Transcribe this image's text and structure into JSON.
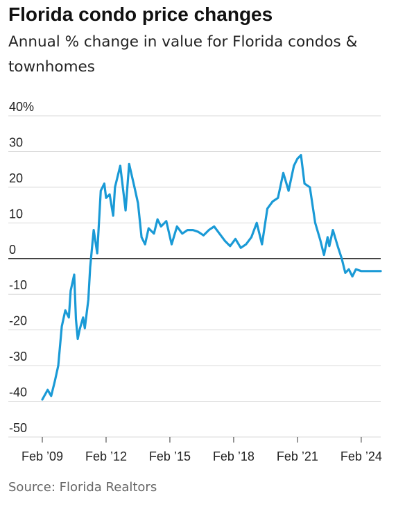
{
  "title": "Florida condo price changes",
  "subtitle": "Annual % change in value for Florida condos & townhomes",
  "source": "Source: Florida Realtors",
  "colors": {
    "line": "#1a9ad6",
    "grid": "#d9d9d9",
    "zero_line": "#333333",
    "text": "#222222"
  },
  "chart_data": {
    "type": "line",
    "title": "Florida condo price changes",
    "subtitle": "Annual % change in value for Florida condos & townhomes",
    "xlabel": "",
    "ylabel": "",
    "ylim": [
      -50,
      40
    ],
    "xlim": [
      "2009-02",
      "2025-01"
    ],
    "grid": true,
    "y_ticks": [
      {
        "value": 40,
        "label": "40%"
      },
      {
        "value": 30,
        "label": "30"
      },
      {
        "value": 20,
        "label": "20"
      },
      {
        "value": 10,
        "label": "10"
      },
      {
        "value": 0,
        "label": "0"
      },
      {
        "value": -10,
        "label": "-10"
      },
      {
        "value": -20,
        "label": "-20"
      },
      {
        "value": -30,
        "label": "-30"
      },
      {
        "value": -40,
        "label": "-40"
      },
      {
        "value": -50,
        "label": "-50"
      }
    ],
    "x_ticks": [
      {
        "value": "2009-02",
        "label": "Feb ’09"
      },
      {
        "value": "2012-02",
        "label": "Feb ’12"
      },
      {
        "value": "2015-02",
        "label": "Feb ’15"
      },
      {
        "value": "2018-02",
        "label": "Feb ’18"
      },
      {
        "value": "2021-02",
        "label": "Feb ’21"
      },
      {
        "value": "2024-02",
        "label": "Feb ’24"
      }
    ],
    "series": [
      {
        "x": [
          "2009-02",
          "2009-05",
          "2009-07",
          "2009-09",
          "2009-11",
          "2010-01",
          "2010-03",
          "2010-05",
          "2010-06",
          "2010-08",
          "2010-09",
          "2010-10",
          "2010-11",
          "2011-01",
          "2011-02",
          "2011-04",
          "2011-05",
          "2011-07",
          "2011-09",
          "2011-11",
          "2012-01",
          "2012-02",
          "2012-04",
          "2012-06",
          "2012-07",
          "2012-10",
          "2013-01",
          "2013-03",
          "2013-06",
          "2013-08",
          "2013-10",
          "2013-12",
          "2014-02",
          "2014-05",
          "2014-07",
          "2014-09",
          "2014-12",
          "2015-03",
          "2015-06",
          "2015-09",
          "2015-12",
          "2016-03",
          "2016-06",
          "2016-09",
          "2016-12",
          "2017-03",
          "2017-06",
          "2017-09",
          "2017-12",
          "2018-03",
          "2018-06",
          "2018-09",
          "2018-12",
          "2019-03",
          "2019-06",
          "2019-09",
          "2019-12",
          "2020-03",
          "2020-06",
          "2020-09",
          "2020-12",
          "2021-02",
          "2021-04",
          "2021-06",
          "2021-09",
          "2021-12",
          "2022-03",
          "2022-05",
          "2022-07",
          "2022-08",
          "2022-10",
          "2023-01",
          "2023-03",
          "2023-05",
          "2023-07",
          "2023-09",
          "2023-11",
          "2024-02",
          "2024-04",
          "2024-06",
          "2024-08",
          "2024-10",
          "2025-01"
        ],
        "values": [
          -39.5,
          -36.8,
          -38.5,
          -34.5,
          -30,
          -19,
          -14.5,
          -16.5,
          -9,
          -4.5,
          -17,
          -22.5,
          -20,
          -16.5,
          -19.5,
          -11.5,
          -2.5,
          8,
          1.5,
          19,
          21,
          17,
          18,
          12,
          20,
          26,
          13.5,
          26.5,
          20,
          15.5,
          6,
          4,
          8.5,
          7,
          11,
          9,
          10.5,
          4,
          9,
          7,
          8,
          8,
          7.5,
          6.5,
          8,
          9,
          7,
          5,
          3.5,
          5.5,
          3,
          4,
          6,
          10,
          4,
          14,
          16,
          17,
          24,
          19,
          26,
          28,
          29,
          21,
          20,
          10,
          5,
          1,
          6,
          3.5,
          8,
          3,
          0,
          -4,
          -3,
          -5,
          -3,
          -3.5,
          -3.5,
          -3.5,
          -3.5,
          -3.5,
          -3.5
        ]
      }
    ]
  }
}
